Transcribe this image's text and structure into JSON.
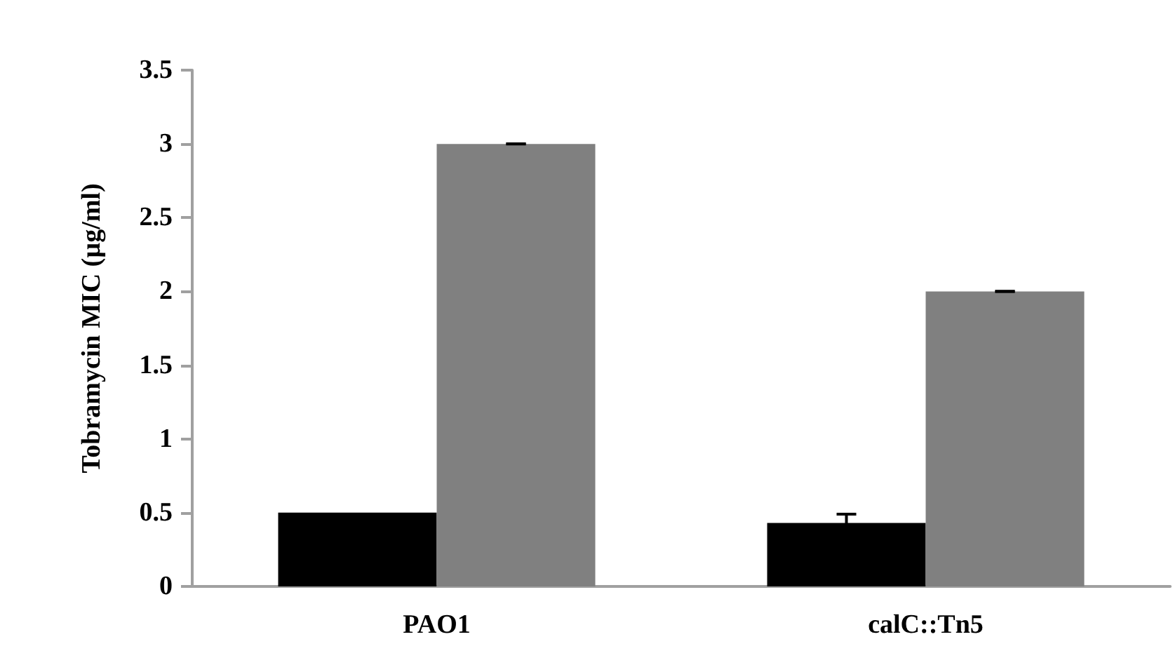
{
  "chart_data": {
    "type": "bar",
    "ylabel": "Tobramycin MIC (µg/ml)",
    "categories": [
      "PAO1",
      "calC::Tn5"
    ],
    "series": [
      {
        "color": "#000000",
        "values": [
          0.5,
          0.43
        ],
        "errors": [
          null,
          0.06
        ]
      },
      {
        "color": "#808080",
        "values": [
          3,
          2
        ],
        "errors": [
          0,
          0
        ]
      }
    ],
    "ylim": [
      0,
      3.5
    ],
    "yticks": [
      0,
      0.5,
      1,
      1.5,
      2,
      2.5,
      3,
      3.5
    ]
  }
}
